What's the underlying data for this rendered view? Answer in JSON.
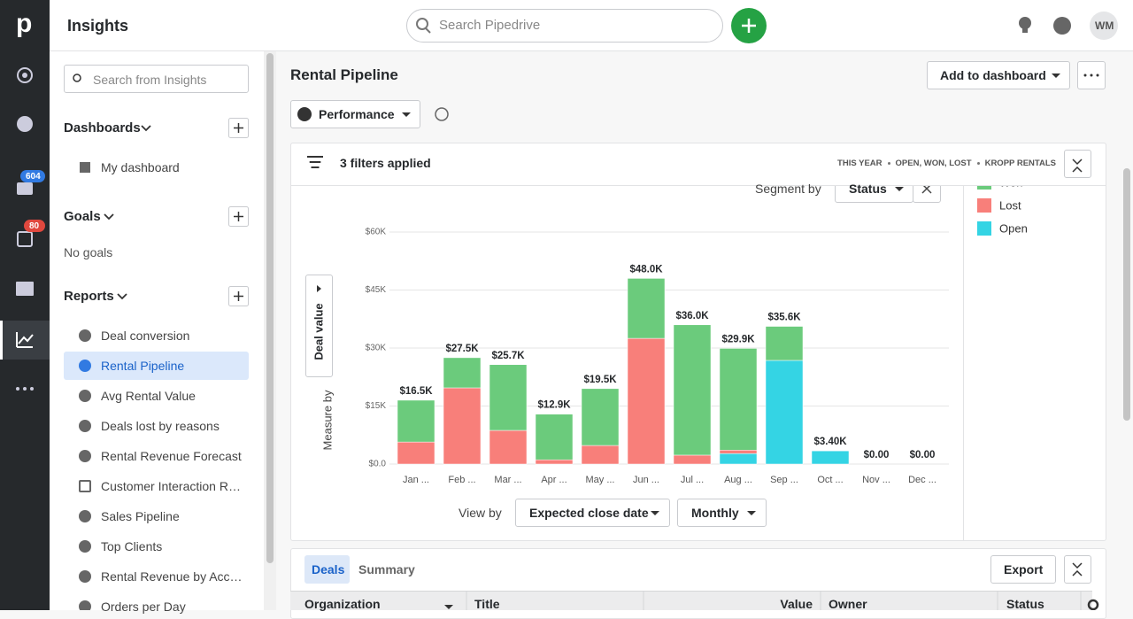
{
  "app": {
    "logo": "p",
    "section_title": "Insights",
    "search_placeholder": "Search Pipedrive",
    "avatar": "WM",
    "badges": {
      "mail": 604,
      "calendar": 80
    }
  },
  "sidebar": {
    "search_placeholder": "Search from Insights",
    "dashboards": {
      "title": "Dashboards",
      "items": [
        "My dashboard"
      ]
    },
    "goals": {
      "title": "Goals",
      "empty": "No goals"
    },
    "reports": {
      "title": "Reports",
      "active": 1,
      "items": [
        "Deal conversion",
        "Rental Pipeline",
        "Avg Rental Value",
        "Deals lost by reasons",
        "Rental Revenue Forecast",
        "Customer Interaction R…",
        "Sales Pipeline",
        "Top Clients",
        "Rental Revenue by Acc…",
        "Orders per Day"
      ]
    }
  },
  "report": {
    "title": "Rental Pipeline",
    "add_button": "Add to dashboard",
    "type_select": "Performance",
    "filters": {
      "label": "3 filters applied",
      "tags": [
        "THIS YEAR",
        "OPEN, WON, LOST",
        "KROPP RENTALS"
      ]
    },
    "segment_label": "Segment by",
    "segment_value": "Status",
    "measure_label": "Measure by",
    "measure_value": "Deal value",
    "view_label": "View by",
    "view_value": "Expected close date",
    "interval_value": "Monthly"
  },
  "chart_data": {
    "type": "stacked_bar",
    "categories": [
      "Jan ...",
      "Feb ...",
      "Mar ...",
      "Apr ...",
      "May ...",
      "Jun ...",
      "Jul ...",
      "Aug ...",
      "Sep ...",
      "Oct ...",
      "Nov ...",
      "Dec ..."
    ],
    "series": [
      {
        "name": "Open",
        "color": "#34d4e4",
        "values": [
          0,
          0,
          0,
          0,
          0,
          0,
          0,
          2700,
          26800,
          3400,
          0,
          0
        ]
      },
      {
        "name": "Lost",
        "color": "#f87f7a",
        "values": [
          5700,
          19700,
          8700,
          1100,
          4800,
          32500,
          2300,
          900,
          0,
          0,
          0,
          0
        ]
      },
      {
        "name": "Won",
        "color": "#6bcb7c",
        "values": [
          10800,
          7800,
          17000,
          11800,
          14700,
          15500,
          33700,
          26300,
          8800,
          0,
          0,
          0
        ]
      }
    ],
    "legend_order": [
      "Won",
      "Lost",
      "Open"
    ],
    "totals": {
      "values": [
        16500,
        27500,
        25700,
        12900,
        19500,
        48000,
        36000,
        29900,
        35600,
        3400,
        0,
        0
      ],
      "value_labels": [
        "$16.5K",
        "$27.5K",
        "$25.7K",
        "$12.9K",
        "$19.5K",
        "$48.0K",
        "$36.0K",
        "$29.9K",
        "$35.6K",
        "$3.40K",
        "$0.00",
        "$0.00"
      ]
    },
    "ylim": [
      0,
      60000
    ],
    "yticks": [
      {
        "value": 0,
        "label": "$0.0"
      },
      {
        "value": 15000,
        "label": "$15K"
      },
      {
        "value": 30000,
        "label": "$30K"
      },
      {
        "value": 45000,
        "label": "$45K"
      },
      {
        "value": 60000,
        "label": "$60K"
      }
    ],
    "grid": true
  },
  "table": {
    "tabs": [
      "Deals",
      "Summary"
    ],
    "export": "Export",
    "columns": [
      "Organization",
      "Title",
      "Value",
      "Owner",
      "Status"
    ]
  }
}
